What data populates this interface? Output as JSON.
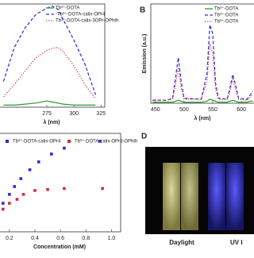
{
  "chart_data": [
    {
      "type": "line",
      "xlabel": "λ (nm)",
      "xlim": [
        231,
        327
      ],
      "xticks": [
        275,
        300,
        325
      ],
      "ylim": [
        0,
        100
      ],
      "legend": "upper right",
      "x": [
        235,
        245,
        255,
        265,
        275,
        280,
        285,
        290,
        300,
        310,
        320
      ],
      "series": [
        {
          "name": "Tb³⁺-DOTA",
          "color": "#2a9d2a",
          "style": "solid",
          "values": [
            2,
            2,
            3,
            4,
            6,
            5,
            4,
            3,
            2,
            2,
            2
          ]
        },
        {
          "name": "-Tb³⁺-DOTA-calix-OPr4",
          "color": "#2b2bd0",
          "style": "dashed",
          "values": [
            25,
            58,
            77,
            90,
            96,
            98,
            95,
            85,
            65,
            42,
            12
          ]
        },
        {
          "name": "Tb³⁺-DOTA-calix-3OPr-OPhth",
          "color": "#d42a3c",
          "style": "dotted",
          "values": [
            10,
            22,
            35,
            48,
            55,
            57,
            58,
            54,
            40,
            22,
            8
          ]
        }
      ]
    },
    {
      "type": "line",
      "label": "B",
      "xlabel": "λ (nm)",
      "ylabel": "Emission (a.u.)",
      "xlim": [
        442,
        622
      ],
      "xticks": [
        450,
        500,
        550,
        600
      ],
      "ylim": [
        0,
        100
      ],
      "legend": "upper right",
      "x": [
        445,
        470,
        480,
        485,
        490,
        495,
        500,
        530,
        540,
        545,
        550,
        555,
        560,
        575,
        580,
        585,
        590,
        595,
        610,
        615,
        620
      ],
      "series": [
        {
          "name": "Tb³⁺-DOTA",
          "color": "#2a9d2a",
          "style": "solid",
          "values": [
            1,
            1,
            1,
            2,
            3,
            2,
            1,
            1,
            2,
            4,
            3,
            2,
            1,
            1,
            2,
            3,
            2,
            1,
            1,
            2,
            2
          ]
        },
        {
          "name": "Tb³⁺-DOTA",
          "color": "#2b2bd0",
          "style": "dashed",
          "values": [
            3,
            3,
            5,
            25,
            46,
            22,
            5,
            4,
            30,
            79,
            70,
            20,
            5,
            4,
            15,
            29,
            18,
            5,
            4,
            8,
            12
          ]
        },
        {
          "name": "Tb³⁺-DOTA",
          "color": "#d42a3c",
          "style": "dotted",
          "values": [
            3,
            3,
            4,
            18,
            36,
            15,
            4,
            4,
            22,
            60,
            50,
            14,
            4,
            4,
            12,
            24,
            14,
            4,
            3,
            6,
            9
          ]
        }
      ]
    },
    {
      "type": "scatter",
      "xlabel": "Concentration (mM)",
      "xlim": [
        0.12,
        1.06
      ],
      "xticks": [
        0.2,
        0.4,
        0.6,
        0.8,
        {
          "value": 1,
          "label": "1.0"
        }
      ],
      "ylim": [
        0,
        100
      ],
      "legend": "top",
      "series": [
        {
          "name": "Tb³⁺-DOTA-calix-OPr4",
          "color": "#2b2bd0",
          "x": [
            0.15,
            0.2,
            0.24,
            0.29,
            0.36,
            0.43,
            0.53,
            0.63,
            0.91
          ],
          "values": [
            29,
            38,
            46,
            54,
            63,
            71,
            79,
            85,
            92
          ]
        },
        {
          "name": "Tb³⁺-DOTA-calix-OPr3-OPhth",
          "color": "#d42a3c",
          "x": [
            0.15,
            0.2,
            0.26,
            0.31,
            0.4,
            0.5,
            0.63,
            0.93
          ],
          "values": [
            23,
            29,
            33,
            38,
            42,
            43,
            44,
            44
          ]
        }
      ]
    }
  ],
  "photo": {
    "label": "D",
    "captions": [
      "Daylight",
      "UV l"
    ]
  }
}
